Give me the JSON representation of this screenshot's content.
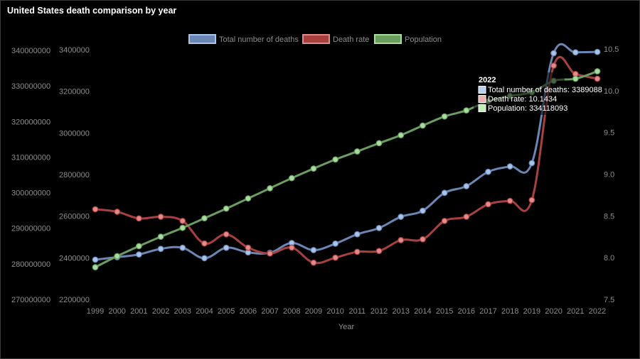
{
  "title": "United States death comparison by year",
  "chart_data": {
    "type": "line",
    "title": "United States death comparison by year",
    "xlabel": "Year",
    "x": [
      "1999",
      "2000",
      "2001",
      "2002",
      "2003",
      "2004",
      "2005",
      "2006",
      "2007",
      "2008",
      "2009",
      "2010",
      "2011",
      "2012",
      "2013",
      "2014",
      "2015",
      "2016",
      "2017",
      "2018",
      "2019",
      "2020",
      "2021",
      "2022"
    ],
    "axes": {
      "population": {
        "min": 270000000,
        "max": 340000000,
        "step": 10000000,
        "ticks": [
          "270000000",
          "280000000",
          "290000000",
          "300000000",
          "310000000",
          "320000000",
          "330000000",
          "340000000"
        ]
      },
      "deaths": {
        "min": 2200000,
        "max": 3400000,
        "step": 200000,
        "ticks": [
          "2200000",
          "2400000",
          "2600000",
          "2800000",
          "3000000",
          "3200000",
          "3400000"
        ]
      },
      "rate": {
        "min": 7.5,
        "max": 10.5,
        "step": 0.5,
        "ticks": [
          "7.5",
          "8.0",
          "8.5",
          "9.0",
          "9.5",
          "10.0",
          "10.5"
        ]
      }
    },
    "series": [
      {
        "name": "Total number of deaths",
        "axis": "deaths",
        "color": "#6a86b4",
        "point_color": "#a9c4ea",
        "values": [
          2391000,
          2403000,
          2416000,
          2443000,
          2448000,
          2398000,
          2448000,
          2426000,
          2424000,
          2471000,
          2437000,
          2468000,
          2513000,
          2543000,
          2597000,
          2626000,
          2712000,
          2744000,
          2813000,
          2839000,
          2855000,
          3383000,
          3387000,
          3389088
        ]
      },
      {
        "name": "Death rate",
        "axis": "rate",
        "color": "#a84040",
        "point_color": "#e58a8a",
        "values": [
          8.58,
          8.55,
          8.47,
          8.49,
          8.44,
          8.17,
          8.28,
          8.12,
          8.05,
          8.12,
          7.94,
          8.0,
          8.07,
          8.08,
          8.21,
          8.22,
          8.44,
          8.49,
          8.64,
          8.68,
          8.69,
          10.3,
          10.2,
          10.1434
        ]
      },
      {
        "name": "Population",
        "axis": "population",
        "color": "#6a9e5f",
        "point_color": "#a8dca0",
        "values": [
          279040000,
          282160000,
          284970000,
          287630000,
          290110000,
          292810000,
          295520000,
          298380000,
          301230000,
          304090000,
          306770000,
          309330000,
          311590000,
          313910000,
          316160000,
          318860000,
          321420000,
          323130000,
          325720000,
          327170000,
          328240000,
          331450000,
          332030000,
          334118093
        ]
      }
    ],
    "legend_position": "top",
    "grid": false
  },
  "tooltip": {
    "title": "2022",
    "lines": [
      "Total number of deaths: 3389088",
      "Death rate: 10.1434",
      "Population: 334118093"
    ],
    "swatches": [
      "#b9cff0",
      "#f0b0b0",
      "#c2eeb8"
    ]
  }
}
